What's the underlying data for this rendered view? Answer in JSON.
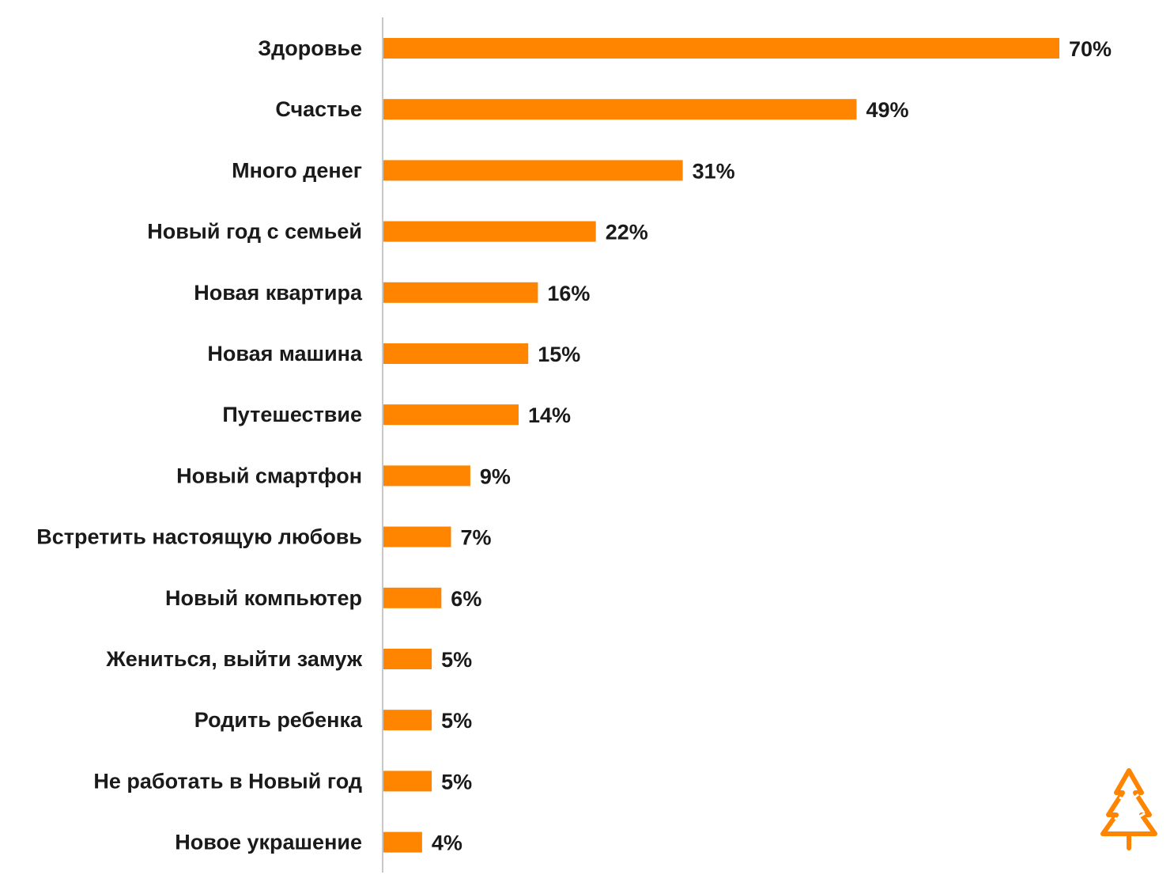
{
  "chart_data": {
    "type": "bar",
    "orientation": "horizontal",
    "categories": [
      "Здоровье",
      "Счастье",
      "Много денег",
      "Новый год с семьей",
      "Новая квартира",
      "Новая машина",
      "Путешествие",
      "Новый смартфон",
      "Встретить настоящую любовь",
      "Новый компьютер",
      "Жениться, выйти замуж",
      "Родить ребенка",
      "Не работать в Новый год",
      "Новое украшение"
    ],
    "values": [
      70,
      49,
      31,
      22,
      16,
      15,
      14,
      9,
      7,
      6,
      5,
      5,
      5,
      4
    ],
    "value_labels": [
      "70%",
      "49%",
      "31%",
      "22%",
      "16%",
      "15%",
      "14%",
      "9%",
      "7%",
      "6%",
      "5%",
      "5%",
      "5%",
      "4%"
    ],
    "unit": "%",
    "xlim": [
      0,
      70
    ],
    "grid": false,
    "legend": "none",
    "colors": {
      "bar": "#FF8400",
      "axis": "#c8c8c8",
      "text": "#1a1a1a"
    }
  },
  "decoration": {
    "icon": "christmas-tree-icon",
    "color": "#FF8400"
  }
}
